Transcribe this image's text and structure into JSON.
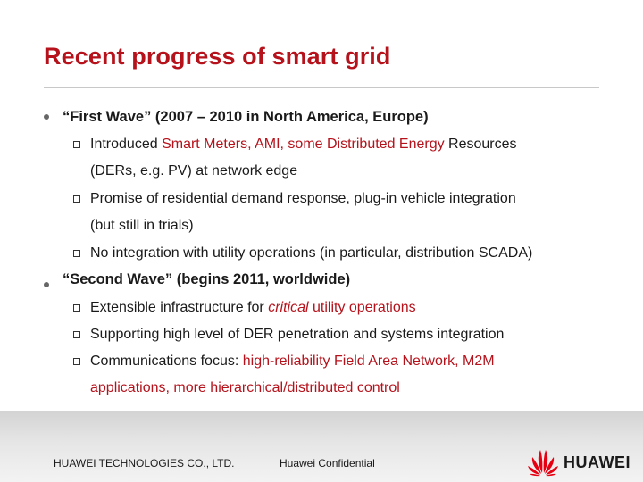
{
  "slide": {
    "title": "Recent progress of smart grid"
  },
  "bullets": {
    "first_wave": {
      "label": "“First Wave” (2007 – 2010 in North America, Europe)",
      "items": [
        {
          "line1_a": "Introduced ",
          "line1_hl": "Smart Meters, AMI, some Distributed Energy",
          "line1_b": " Resources",
          "line2": "(DERs, e.g. PV) at network edge"
        },
        {
          "line1": "Promise of residential demand response, plug-in vehicle integration",
          "line2": "(but still in trials)"
        },
        {
          "line1": "No integration with utility operations (in particular, distribution SCADA)"
        }
      ]
    },
    "second_wave": {
      "label": "“Second Wave” (begins 2011, worldwide)",
      "items": [
        {
          "a": "Extensible infrastructure for ",
          "italic": "critical",
          "hl": " utility operations"
        },
        {
          "line1": "Supporting high level of DER penetration and systems integration"
        },
        {
          "line1_a": "Communications focus: ",
          "line1_hl": "high-reliability Field Area Network, M2M",
          "line2_hl": "applications, more hierarchical/distributed control"
        }
      ]
    }
  },
  "footer": {
    "company": "HUAWEI TECHNOLOGIES CO., LTD.",
    "confidential": "Huawei Confidential",
    "logo_text": "HUAWEI",
    "logo_icon": "huawei-petal-logo",
    "logo_color": "#e60012"
  },
  "colors": {
    "accent": "#b5121b",
    "text": "#1a1a1a"
  }
}
